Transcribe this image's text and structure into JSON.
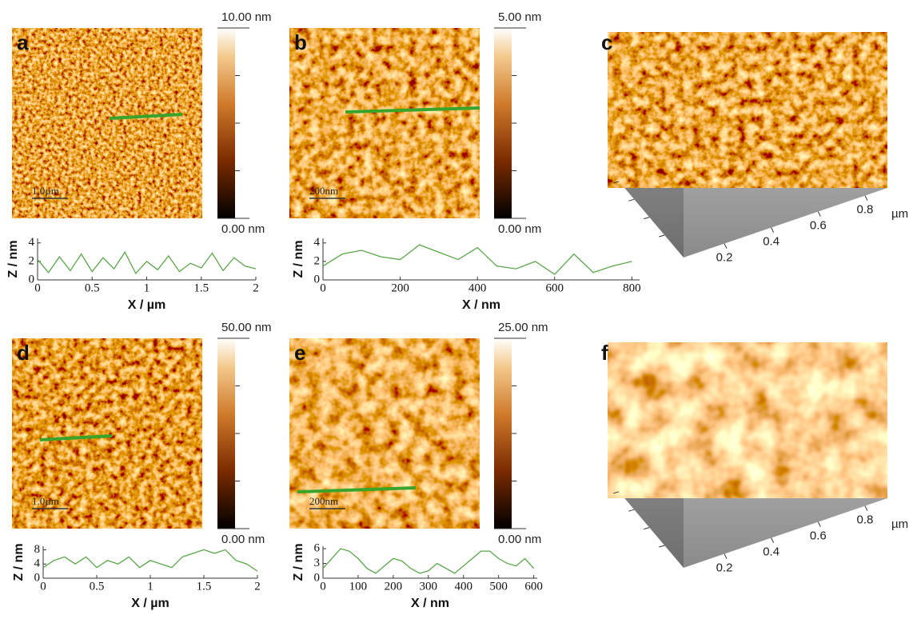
{
  "panels": [
    {
      "letter": "a",
      "colorbar_max": "10.00 nm",
      "colorbar_min": "0.00 nm",
      "scale_bar": "1.0µm",
      "profile": {
        "type": "line",
        "color": "#5aa64a",
        "xlabel": "X / µm",
        "ylabel": "Z / nm",
        "x": [
          0,
          0.1,
          0.2,
          0.3,
          0.4,
          0.5,
          0.6,
          0.7,
          0.8,
          0.9,
          1,
          1.1,
          1.2,
          1.3,
          1.4,
          1.5,
          1.6,
          1.7,
          1.8,
          1.9,
          2
        ],
        "values": [
          2.2,
          0.8,
          2.5,
          1,
          2.8,
          0.9,
          2.4,
          1.2,
          3,
          0.7,
          2,
          1.1,
          2.6,
          0.9,
          1.8,
          1.3,
          2.9,
          1,
          2.4,
          1.5,
          1.2
        ],
        "xlim": [
          0,
          2
        ],
        "ylim": [
          0,
          4.5
        ],
        "xticks": [
          0,
          0.5,
          1,
          1.5,
          2
        ],
        "yticks": [
          0,
          2,
          4
        ]
      }
    },
    {
      "letter": "b",
      "colorbar_max": "5.00 nm",
      "colorbar_min": "0.00 nm",
      "scale_bar": "200nm",
      "profile": {
        "type": "line",
        "color": "#5aa64a",
        "xlabel": "X / nm",
        "ylabel": "Z / nm",
        "x": [
          0,
          50,
          100,
          150,
          200,
          250,
          300,
          350,
          400,
          450,
          500,
          550,
          600,
          650,
          700,
          750,
          800
        ],
        "values": [
          1.5,
          2.8,
          3.2,
          2.5,
          2.2,
          3.8,
          3,
          2.2,
          3.5,
          1.5,
          1.2,
          2,
          0.6,
          2.8,
          0.8,
          1.5,
          2
        ],
        "xlim": [
          0,
          820
        ],
        "ylim": [
          0,
          4.5
        ],
        "xticks": [
          0,
          200,
          400,
          600,
          800
        ],
        "yticks": [
          0,
          2,
          4
        ]
      }
    },
    {
      "letter": "d",
      "colorbar_max": "50.00 nm",
      "colorbar_min": "0.00 nm",
      "scale_bar": "1.0µm",
      "profile": {
        "type": "line",
        "color": "#5aa64a",
        "xlabel": "X / µm",
        "ylabel": "Z / nm",
        "x": [
          0,
          0.1,
          0.2,
          0.3,
          0.4,
          0.5,
          0.6,
          0.7,
          0.8,
          0.9,
          1,
          1.1,
          1.2,
          1.3,
          1.4,
          1.5,
          1.6,
          1.7,
          1.8,
          1.9,
          2
        ],
        "values": [
          3,
          5,
          6,
          4,
          6,
          3,
          5,
          4,
          6,
          3,
          5,
          4,
          3,
          6,
          7,
          8,
          7,
          8,
          5,
          4,
          2
        ],
        "xlim": [
          0,
          2
        ],
        "ylim": [
          0,
          9
        ],
        "xticks": [
          0,
          0.5,
          1,
          1.5,
          2
        ],
        "yticks": [
          0,
          4,
          8
        ]
      }
    },
    {
      "letter": "e",
      "colorbar_max": "25.00 nm",
      "colorbar_min": "0.00 nm",
      "scale_bar": "200nm",
      "profile": {
        "type": "line",
        "color": "#5aa64a",
        "xlabel": "X / nm",
        "ylabel": "Z / nm",
        "x": [
          0,
          25,
          50,
          75,
          100,
          125,
          150,
          175,
          200,
          225,
          250,
          275,
          300,
          325,
          350,
          375,
          400,
          425,
          450,
          475,
          500,
          525,
          550,
          575,
          600
        ],
        "values": [
          2,
          4,
          6,
          5.5,
          4,
          2,
          1,
          2.5,
          4,
          3.5,
          2,
          1,
          1.5,
          3,
          2,
          1,
          2.5,
          4,
          5.5,
          5.5,
          4,
          3,
          2.5,
          4,
          2
        ],
        "xlim": [
          0,
          610
        ],
        "ylim": [
          0,
          6.5
        ],
        "xticks": [
          0,
          100,
          200,
          300,
          400,
          500,
          600
        ],
        "yticks": [
          0,
          3,
          6
        ]
      }
    }
  ],
  "views3d": [
    {
      "letter": "c",
      "ticks": [
        "0.2",
        "0.4",
        "0.6",
        "0.8"
      ],
      "unit": "µm"
    },
    {
      "letter": "f",
      "ticks": [
        "0.2",
        "0.4",
        "0.6",
        "0.8"
      ],
      "unit": "µm"
    }
  ]
}
